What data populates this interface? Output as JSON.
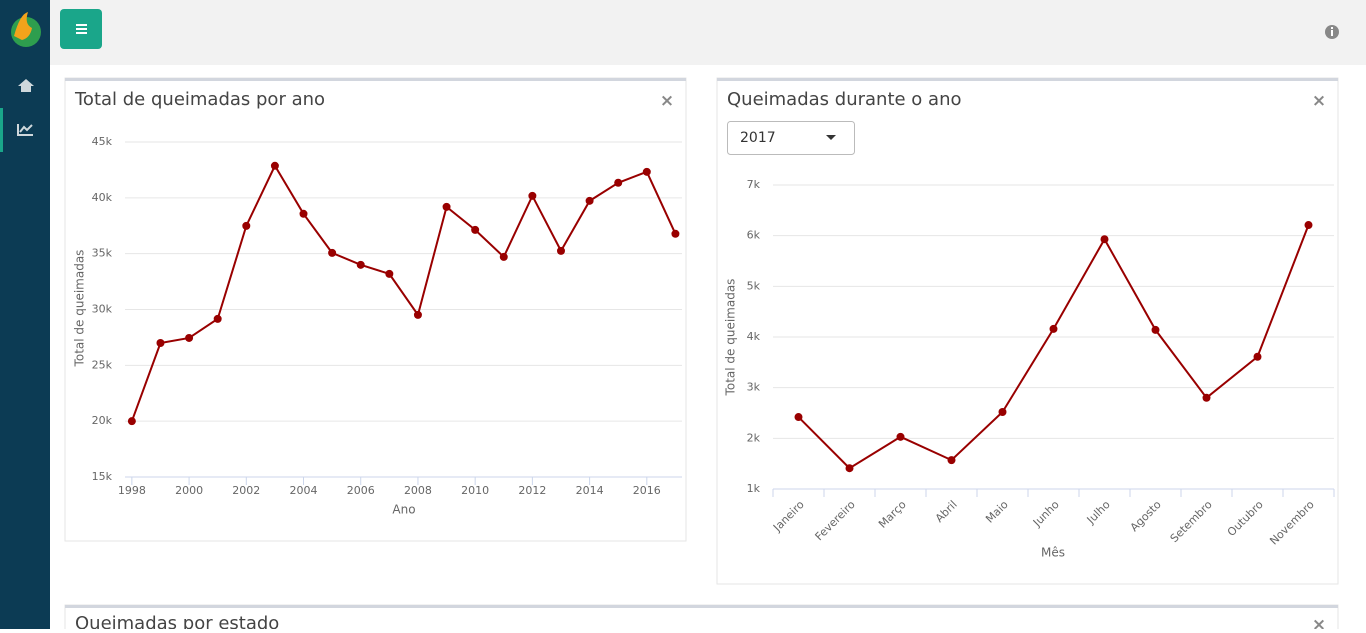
{
  "cards": [
    {
      "close": "×"
    },
    {
      "close": "×"
    },
    {
      "title": "Queimadas por estado",
      "close": "×"
    }
  ],
  "year_selector": "2017",
  "chart_data": [
    {
      "type": "line",
      "title": "Total de queimadas por ano",
      "x_label": "Ano",
      "y_label": "Total de queimadas",
      "x": [
        1998,
        1999,
        2000,
        2001,
        2002,
        2003,
        2004,
        2005,
        2006,
        2007,
        2008,
        2009,
        2010,
        2011,
        2012,
        2013,
        2014,
        2015,
        2016,
        2017
      ],
      "values": [
        20000,
        27000,
        27450,
        29160,
        37490,
        42870,
        38570,
        35070,
        34000,
        33190,
        29520,
        39190,
        37130,
        34710,
        40180,
        35250,
        39730,
        41350,
        42330,
        36780
      ],
      "color": "#990000",
      "xlim": [
        1997.76,
        2017.23
      ],
      "xticks": [
        1998,
        2000,
        2002,
        2004,
        2006,
        2008,
        2010,
        2012,
        2014,
        2016
      ],
      "ylim": [
        15000,
        45000
      ],
      "yticks": [
        {
          "value": 15000,
          "label": "15k"
        },
        {
          "value": 20000,
          "label": "20k"
        },
        {
          "value": 25000,
          "label": "25k"
        },
        {
          "value": 30000,
          "label": "30k"
        },
        {
          "value": 35000,
          "label": "35k"
        },
        {
          "value": 40000,
          "label": "40k"
        },
        {
          "value": 45000,
          "label": "45k"
        }
      ],
      "grid": true
    },
    {
      "type": "line",
      "title": "Queimadas durante o ano",
      "x_label": "Mês",
      "y_label": "Total de queimadas",
      "categories": [
        "Janeiro",
        "Fevereiro",
        "Março",
        "Abril",
        "Maio",
        "Junho",
        "Julho",
        "Agosto",
        "Setembro",
        "Outubro",
        "Novembro"
      ],
      "values": [
        2420,
        1410,
        2030,
        1570,
        2520,
        4160,
        5930,
        4140,
        2800,
        3610,
        6210
      ],
      "color": "#990000",
      "ylim": [
        1000,
        7000
      ],
      "yticks": [
        {
          "value": 1000,
          "label": "1k"
        },
        {
          "value": 2000,
          "label": "2k"
        },
        {
          "value": 3000,
          "label": "3k"
        },
        {
          "value": 4000,
          "label": "4k"
        },
        {
          "value": 5000,
          "label": "5k"
        },
        {
          "value": 6000,
          "label": "6k"
        },
        {
          "value": 7000,
          "label": "7k"
        }
      ],
      "grid": true
    }
  ]
}
